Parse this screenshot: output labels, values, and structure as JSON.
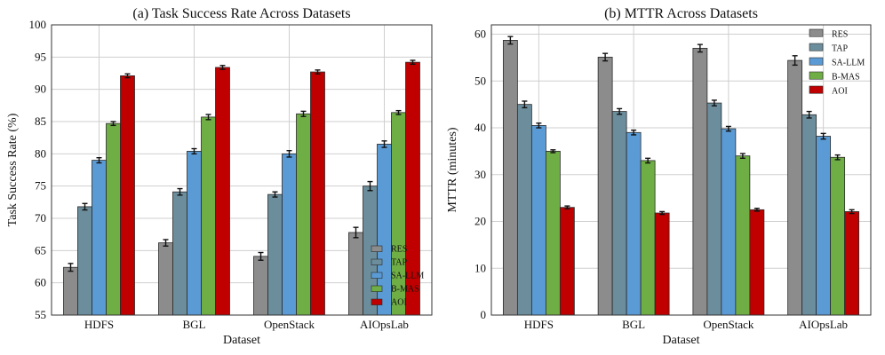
{
  "colors": {
    "RES": "#8c8c8c",
    "TAP": "#6b8d9c",
    "SA-LLM": "#5b9bd5",
    "B-MAS": "#6fae45",
    "AOI": "#c00000"
  },
  "chart_data": [
    {
      "type": "bar",
      "title": "(a) Task Success Rate Across Datasets",
      "xlabel": "Dataset",
      "ylabel": "Task Success Rate (%)",
      "ylim": [
        55,
        100
      ],
      "yticks": [
        55,
        60,
        65,
        70,
        75,
        80,
        85,
        90,
        95,
        100
      ],
      "grid": true,
      "legend_position": "lower-right",
      "categories": [
        "HDFS",
        "BGL",
        "OpenStack",
        "AIOpsLab"
      ],
      "series": [
        {
          "name": "RES",
          "values": [
            62.4,
            66.2,
            64.1,
            67.8
          ],
          "errors": [
            0.6,
            0.5,
            0.6,
            0.8
          ]
        },
        {
          "name": "TAP",
          "values": [
            71.8,
            74.1,
            73.7,
            75.0
          ],
          "errors": [
            0.5,
            0.5,
            0.4,
            0.7
          ]
        },
        {
          "name": "SA-LLM",
          "values": [
            79.0,
            80.4,
            80.0,
            81.5
          ],
          "errors": [
            0.4,
            0.4,
            0.5,
            0.5
          ]
        },
        {
          "name": "B-MAS",
          "values": [
            84.7,
            85.7,
            86.2,
            86.4
          ],
          "errors": [
            0.3,
            0.4,
            0.4,
            0.3
          ]
        },
        {
          "name": "AOI",
          "values": [
            92.1,
            93.4,
            92.7,
            94.2
          ],
          "errors": [
            0.3,
            0.3,
            0.3,
            0.3
          ]
        }
      ]
    },
    {
      "type": "bar",
      "title": "(b) MTTR Across Datasets",
      "xlabel": "Dataset",
      "ylabel": "MTTR (minutes)",
      "ylim": [
        0,
        62
      ],
      "yticks": [
        0,
        10,
        20,
        30,
        40,
        50,
        60
      ],
      "grid": true,
      "legend_position": "top-right",
      "categories": [
        "HDFS",
        "BGL",
        "OpenStack",
        "AIOpsLab"
      ],
      "series": [
        {
          "name": "RES",
          "values": [
            58.7,
            55.1,
            57.0,
            54.4
          ],
          "errors": [
            0.8,
            0.8,
            0.8,
            1.0
          ]
        },
        {
          "name": "TAP",
          "values": [
            45.0,
            43.5,
            45.3,
            42.8
          ],
          "errors": [
            0.7,
            0.6,
            0.6,
            0.7
          ]
        },
        {
          "name": "SA-LLM",
          "values": [
            40.5,
            39.0,
            39.8,
            38.2
          ],
          "errors": [
            0.5,
            0.5,
            0.5,
            0.6
          ]
        },
        {
          "name": "B-MAS",
          "values": [
            35.0,
            33.0,
            34.0,
            33.7
          ],
          "errors": [
            0.3,
            0.5,
            0.5,
            0.5
          ]
        },
        {
          "name": "AOI",
          "values": [
            23.0,
            21.8,
            22.5,
            22.1
          ],
          "errors": [
            0.3,
            0.3,
            0.3,
            0.4
          ]
        }
      ]
    }
  ]
}
